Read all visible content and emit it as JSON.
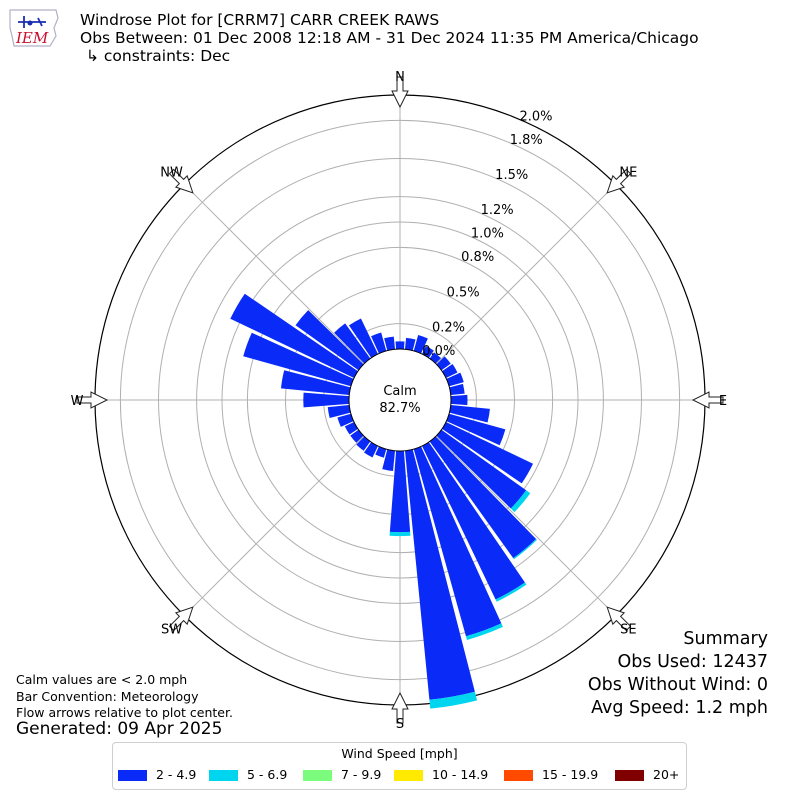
{
  "header": {
    "logo_text": "IEM",
    "title": "Windrose Plot for [CRRM7] CARR CREEK RAWS",
    "obs_between": "Obs Between: 01 Dec 2008 12:18 AM - 31 Dec 2024 11:35 PM America/Chicago",
    "constraints": "↳ constraints: Dec"
  },
  "compass": {
    "n": "N",
    "ne": "NE",
    "e": "E",
    "se": "SE",
    "s": "S",
    "sw": "SW",
    "w": "W",
    "nw": "NW"
  },
  "calm": {
    "label": "Calm",
    "value": "82.7%"
  },
  "summary": {
    "heading": "Summary",
    "obs_used": "Obs Used: 12437",
    "obs_without_wind": "Obs Without Wind: 0",
    "avg_speed": "Avg Speed: 1.2 mph"
  },
  "footnotes": {
    "calm_note": "Calm values are < 2.0 mph",
    "bar_convention": "Bar Convention: Meteorology",
    "flow_arrows": "Flow arrows relative to plot center.",
    "generated": "Generated: 09 Apr 2025"
  },
  "legend": {
    "title": "Wind Speed [mph]",
    "items": [
      {
        "label": "2 - 4.9",
        "color": "#0a2bf7"
      },
      {
        "label": "5 - 6.9",
        "color": "#00d5f0"
      },
      {
        "label": "7 - 9.9",
        "color": "#7cfc7c"
      },
      {
        "label": "10 - 14.9",
        "color": "#ffea00"
      },
      {
        "label": "15 - 19.9",
        "color": "#ff4a00"
      },
      {
        "label": "20+",
        "color": "#800000"
      }
    ]
  },
  "chart_data": {
    "type": "windrose",
    "title": "Windrose Plot for [CRRM7] CARR CREEK RAWS",
    "calm_percent": 82.7,
    "radial_ticks": [
      "0.0%",
      "0.2%",
      "0.5%",
      "0.8%",
      "1.0%",
      "1.2%",
      "1.5%",
      "1.8%",
      "2.0%"
    ],
    "rlim": [
      0,
      2.0
    ],
    "rlim_note": "",
    "directions_deg": [
      0,
      10,
      20,
      30,
      40,
      50,
      60,
      70,
      80,
      90,
      100,
      110,
      120,
      130,
      140,
      150,
      160,
      170,
      180,
      190,
      200,
      210,
      220,
      230,
      240,
      250,
      260,
      270,
      280,
      290,
      300,
      310,
      320,
      330,
      340,
      350
    ],
    "series": [
      {
        "name": "2 - 4.9",
        "values": [
          0.06,
          0.09,
          0.13,
          0.07,
          0.06,
          0.09,
          0.1,
          0.12,
          0.11,
          0.13,
          0.31,
          0.46,
          0.76,
          0.82,
          1.13,
          1.34,
          1.53,
          1.97,
          0.64,
          0.16,
          0.07,
          0.1,
          0.09,
          0.08,
          0.08,
          0.11,
          0.17,
          0.36,
          0.54,
          0.88,
          1.08,
          0.61,
          0.34,
          0.31,
          0.15,
          0.1
        ]
      },
      {
        "name": "5 - 6.9",
        "values": [
          0,
          0,
          0,
          0,
          0,
          0,
          0,
          0,
          0,
          0,
          0,
          0,
          0,
          0.04,
          0.01,
          0.02,
          0.03,
          0.07,
          0.03,
          0,
          0,
          0,
          0,
          0,
          0,
          0,
          0,
          0,
          0,
          0,
          0,
          0,
          0,
          0,
          0,
          0
        ]
      },
      {
        "name": "7 - 9.9",
        "values": [
          0,
          0,
          0,
          0,
          0,
          0,
          0,
          0,
          0,
          0,
          0,
          0,
          0,
          0,
          0,
          0,
          0,
          0,
          0,
          0,
          0,
          0,
          0,
          0,
          0,
          0,
          0,
          0,
          0,
          0,
          0,
          0,
          0,
          0,
          0,
          0
        ]
      },
      {
        "name": "10 - 14.9",
        "values": [
          0,
          0,
          0,
          0,
          0,
          0,
          0,
          0,
          0,
          0,
          0,
          0,
          0,
          0,
          0,
          0,
          0,
          0,
          0,
          0,
          0,
          0,
          0,
          0,
          0,
          0,
          0,
          0,
          0,
          0,
          0,
          0,
          0,
          0,
          0,
          0
        ]
      },
      {
        "name": "15 - 19.9",
        "values": [
          0,
          0,
          0,
          0,
          0,
          0,
          0,
          0,
          0,
          0,
          0,
          0,
          0,
          0,
          0,
          0,
          0,
          0,
          0,
          0,
          0,
          0,
          0,
          0,
          0,
          0,
          0,
          0,
          0,
          0,
          0,
          0,
          0,
          0,
          0,
          0
        ]
      },
      {
        "name": "20+",
        "values": [
          0,
          0,
          0,
          0,
          0,
          0,
          0,
          0,
          0,
          0,
          0,
          0,
          0,
          0,
          0,
          0,
          0,
          0,
          0,
          0,
          0,
          0,
          0,
          0,
          0,
          0,
          0,
          0,
          0,
          0,
          0,
          0,
          0,
          0,
          0,
          0
        ]
      }
    ]
  }
}
